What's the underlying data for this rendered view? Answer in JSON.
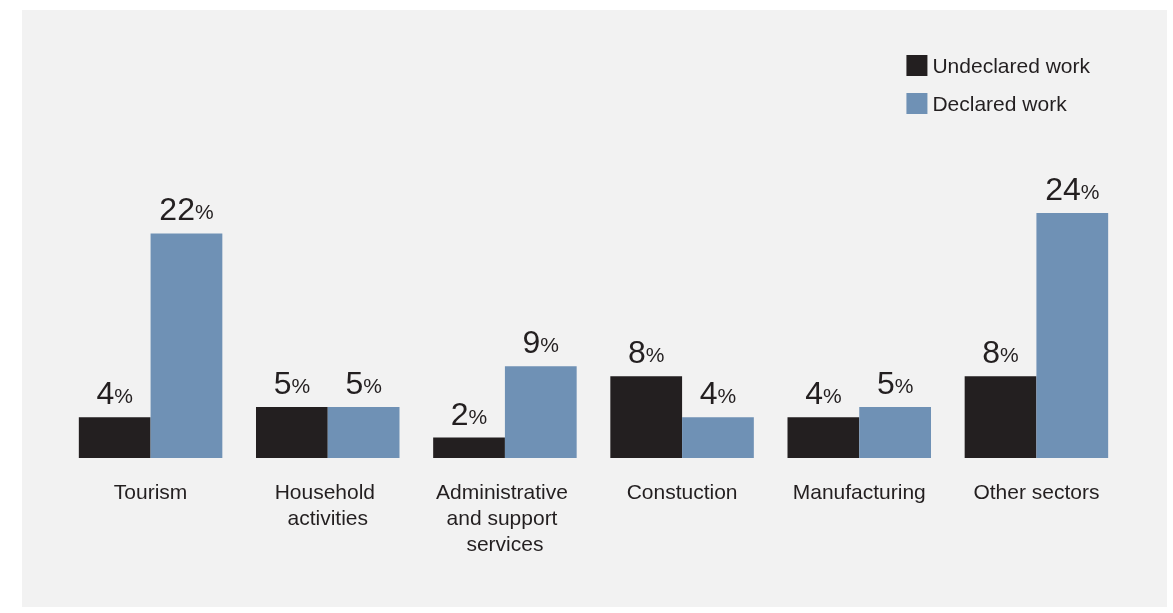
{
  "chart_data": {
    "type": "bar",
    "categories": [
      "Tourism",
      "Household activities",
      "Administrative and support services",
      "Constuction",
      "Manufacturing",
      "Other sectors"
    ],
    "series": [
      {
        "name": "Undeclared work",
        "color": "#231f20",
        "values": [
          4,
          5,
          2,
          8,
          4,
          8
        ],
        "value_labels": [
          "4%",
          "5%",
          "2%",
          "8%",
          "4%",
          "8%"
        ]
      },
      {
        "name": "Declared work",
        "color": "#6f91b5",
        "values": [
          22,
          5,
          9,
          4,
          5,
          24
        ],
        "value_labels": [
          "22%",
          "5%",
          "9%",
          "4%",
          "5%",
          "24%"
        ]
      }
    ],
    "legend": "top right",
    "grid": false
  }
}
